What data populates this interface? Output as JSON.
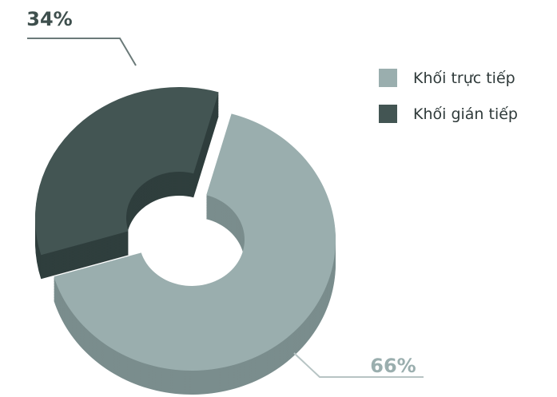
{
  "chart_data": {
    "type": "pie",
    "style": "3d-exploded-donut",
    "slices": [
      {
        "label": "Khối trực tiếp",
        "value": 66,
        "display": "66%",
        "color": "#9aaeae",
        "shade": "#7a8d8d"
      },
      {
        "label": "Khối gián tiếp",
        "value": 34,
        "display": "34%",
        "color": "#435553",
        "shade": "#2f3e3d"
      }
    ],
    "legend": "right"
  }
}
